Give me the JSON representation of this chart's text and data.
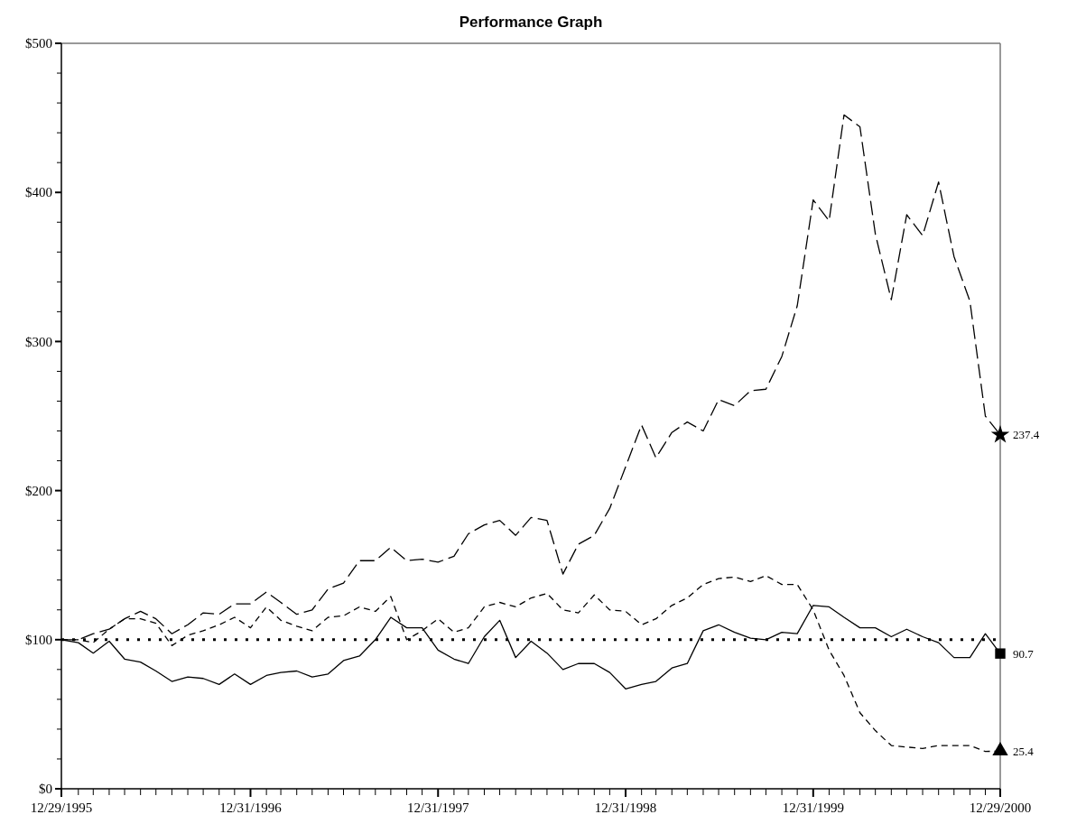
{
  "chart_data": {
    "type": "line",
    "title": "Performance Graph",
    "x": [
      "1995-12-29",
      "1996-01-31",
      "1996-02-29",
      "1996-03-31",
      "1996-04-30",
      "1996-05-31",
      "1996-06-30",
      "1996-07-31",
      "1996-08-31",
      "1996-09-30",
      "1996-10-31",
      "1996-11-30",
      "1996-12-31",
      "1997-01-31",
      "1997-02-28",
      "1997-03-31",
      "1997-04-30",
      "1997-05-31",
      "1997-06-30",
      "1997-07-31",
      "1997-08-31",
      "1997-09-30",
      "1997-10-31",
      "1997-11-30",
      "1997-12-31",
      "1998-01-31",
      "1998-02-28",
      "1998-03-31",
      "1998-04-30",
      "1998-05-31",
      "1998-06-30",
      "1998-07-31",
      "1998-08-31",
      "1998-09-30",
      "1998-10-31",
      "1998-11-30",
      "1998-12-31",
      "1999-01-31",
      "1999-02-28",
      "1999-03-31",
      "1999-04-30",
      "1999-05-31",
      "1999-06-30",
      "1999-07-31",
      "1999-08-31",
      "1999-09-30",
      "1999-10-31",
      "1999-11-30",
      "1999-12-31",
      "2000-01-31",
      "2000-02-29",
      "2000-03-31",
      "2000-04-30",
      "2000-05-31",
      "2000-06-30",
      "2000-07-31",
      "2000-08-31",
      "2000-09-30",
      "2000-10-31",
      "2000-11-30",
      "2000-12-29"
    ],
    "series": [
      {
        "color": "#000000",
        "line_style": "dashed",
        "values": [
          100,
          100,
          104,
          107,
          114,
          119,
          114,
          104,
          110,
          118,
          117,
          124,
          124,
          132,
          125,
          117,
          120,
          134,
          138,
          153,
          153,
          162,
          153,
          154,
          152,
          156,
          171,
          177,
          180,
          170,
          182,
          180,
          144,
          164,
          170,
          188,
          216,
          244,
          222,
          239,
          246,
          240,
          261,
          257,
          267,
          268,
          290,
          324,
          395,
          381,
          452,
          444,
          372,
          328,
          385,
          371,
          407,
          357,
          327,
          250,
          237.4
        ]
      },
      {
        "color": "#000000",
        "line_style": "solid",
        "values": [
          100,
          98,
          91,
          99,
          87,
          85,
          79,
          72,
          75,
          74,
          70,
          77,
          70,
          76,
          78,
          79,
          75,
          77,
          86,
          89,
          100,
          115,
          108,
          108,
          93,
          87,
          84,
          102,
          113,
          88,
          99,
          91,
          80,
          84,
          84,
          78,
          67,
          70,
          72,
          81,
          84,
          106,
          110,
          105,
          101,
          100,
          105,
          104,
          123,
          122,
          115,
          108,
          108,
          102,
          107,
          102,
          98,
          88,
          88,
          104,
          90.7
        ]
      },
      {
        "color": "#000000",
        "line_style": "dashed",
        "values": [
          100,
          100,
          98,
          107,
          114,
          114,
          111,
          96,
          103,
          106,
          110,
          115,
          108,
          122,
          113,
          109,
          106,
          115,
          116,
          122,
          119,
          129,
          100,
          106,
          114,
          105,
          108,
          122,
          125,
          122,
          128,
          131,
          120,
          118,
          130,
          120,
          119,
          110,
          114,
          123,
          128,
          137,
          141,
          142,
          139,
          143,
          137,
          137,
          120,
          93,
          76,
          51,
          39,
          29,
          28,
          27,
          29,
          29,
          29,
          25,
          25.4
        ]
      },
      {
        "type": "scatter",
        "marker": "star",
        "color": "#000000",
        "x": [
          "2000-12-29"
        ],
        "values": [
          237.4
        ],
        "value_labels": [
          "237.4"
        ]
      },
      {
        "type": "scatter",
        "marker": "square",
        "color": "#000000",
        "x": [
          "2000-12-29"
        ],
        "values": [
          90.7
        ],
        "value_labels": [
          "90.7"
        ]
      },
      {
        "type": "scatter",
        "marker": "triangle",
        "color": "#000000",
        "x": [
          "2000-12-29"
        ],
        "values": [
          25.4
        ],
        "value_labels": [
          "25.4"
        ]
      }
    ],
    "xlim": [
      "1995-12-29",
      "2000-12-29"
    ],
    "xticks": [
      {
        "value": "1995-12-29",
        "label": "12/29/1995"
      },
      {
        "value": "1996-01-31",
        "label": null
      },
      {
        "value": "1996-02-29",
        "label": null
      },
      {
        "value": "1996-03-31",
        "label": null
      },
      {
        "value": "1996-04-30",
        "label": null
      },
      {
        "value": "1996-05-31",
        "label": null
      },
      {
        "value": "1996-06-30",
        "label": null
      },
      {
        "value": "1996-07-31",
        "label": null
      },
      {
        "value": "1996-08-31",
        "label": null
      },
      {
        "value": "1996-09-30",
        "label": null
      },
      {
        "value": "1996-10-31",
        "label": null
      },
      {
        "value": "1996-11-30",
        "label": null
      },
      {
        "value": "1996-12-31",
        "label": "12/31/1996"
      },
      {
        "value": "1997-01-31",
        "label": null
      },
      {
        "value": "1997-02-28",
        "label": null
      },
      {
        "value": "1997-03-31",
        "label": null
      },
      {
        "value": "1997-04-30",
        "label": null
      },
      {
        "value": "1997-05-31",
        "label": null
      },
      {
        "value": "1997-06-30",
        "label": null
      },
      {
        "value": "1997-07-31",
        "label": null
      },
      {
        "value": "1997-08-31",
        "label": null
      },
      {
        "value": "1997-09-30",
        "label": null
      },
      {
        "value": "1997-10-31",
        "label": null
      },
      {
        "value": "1997-11-30",
        "label": null
      },
      {
        "value": "1997-12-31",
        "label": "12/31/1997"
      },
      {
        "value": "1998-01-31",
        "label": null
      },
      {
        "value": "1998-02-28",
        "label": null
      },
      {
        "value": "1998-03-31",
        "label": null
      },
      {
        "value": "1998-04-30",
        "label": null
      },
      {
        "value": "1998-05-31",
        "label": null
      },
      {
        "value": "1998-06-30",
        "label": null
      },
      {
        "value": "1998-07-31",
        "label": null
      },
      {
        "value": "1998-08-31",
        "label": null
      },
      {
        "value": "1998-09-30",
        "label": null
      },
      {
        "value": "1998-10-31",
        "label": null
      },
      {
        "value": "1998-11-30",
        "label": null
      },
      {
        "value": "1998-12-31",
        "label": "12/31/1998"
      },
      {
        "value": "1999-01-31",
        "label": null
      },
      {
        "value": "1999-02-28",
        "label": null
      },
      {
        "value": "1999-03-31",
        "label": null
      },
      {
        "value": "1999-04-30",
        "label": null
      },
      {
        "value": "1999-05-31",
        "label": null
      },
      {
        "value": "1999-06-30",
        "label": null
      },
      {
        "value": "1999-07-31",
        "label": null
      },
      {
        "value": "1999-08-31",
        "label": null
      },
      {
        "value": "1999-09-30",
        "label": null
      },
      {
        "value": "1999-10-31",
        "label": null
      },
      {
        "value": "1999-11-30",
        "label": null
      },
      {
        "value": "1999-12-31",
        "label": "12/31/1999"
      },
      {
        "value": "2000-01-31",
        "label": null
      },
      {
        "value": "2000-02-29",
        "label": null
      },
      {
        "value": "2000-03-31",
        "label": null
      },
      {
        "value": "2000-04-30",
        "label": null
      },
      {
        "value": "2000-05-31",
        "label": null
      },
      {
        "value": "2000-06-30",
        "label": null
      },
      {
        "value": "2000-07-31",
        "label": null
      },
      {
        "value": "2000-08-31",
        "label": null
      },
      {
        "value": "2000-09-30",
        "label": null
      },
      {
        "value": "2000-10-31",
        "label": null
      },
      {
        "value": "2000-11-30",
        "label": null
      },
      {
        "value": "2000-12-29",
        "label": "12/29/2000"
      }
    ],
    "ylim": [
      0,
      500
    ],
    "yticks": [
      {
        "value": 0,
        "label": "$0"
      },
      {
        "value": 20,
        "label": null
      },
      {
        "value": 40,
        "label": null
      },
      {
        "value": 60,
        "label": null
      },
      {
        "value": 80,
        "label": null
      },
      {
        "value": 100,
        "label": "$100"
      },
      {
        "value": 120,
        "label": null
      },
      {
        "value": 140,
        "label": null
      },
      {
        "value": 160,
        "label": null
      },
      {
        "value": 180,
        "label": null
      },
      {
        "value": 200,
        "label": "$200"
      },
      {
        "value": 220,
        "label": null
      },
      {
        "value": 240,
        "label": null
      },
      {
        "value": 260,
        "label": null
      },
      {
        "value": 280,
        "label": null
      },
      {
        "value": 300,
        "label": "$300"
      },
      {
        "value": 320,
        "label": null
      },
      {
        "value": 340,
        "label": null
      },
      {
        "value": 360,
        "label": null
      },
      {
        "value": 380,
        "label": null
      },
      {
        "value": 400,
        "label": "$400"
      },
      {
        "value": 420,
        "label": null
      },
      {
        "value": 440,
        "label": null
      },
      {
        "value": 460,
        "label": null
      },
      {
        "value": 480,
        "label": null
      },
      {
        "value": 500,
        "label": "$500"
      }
    ],
    "ref_lines": [
      {
        "axis": "y",
        "value": 100,
        "color": "#000000",
        "line_style": "dotted"
      }
    ],
    "grid": false
  }
}
